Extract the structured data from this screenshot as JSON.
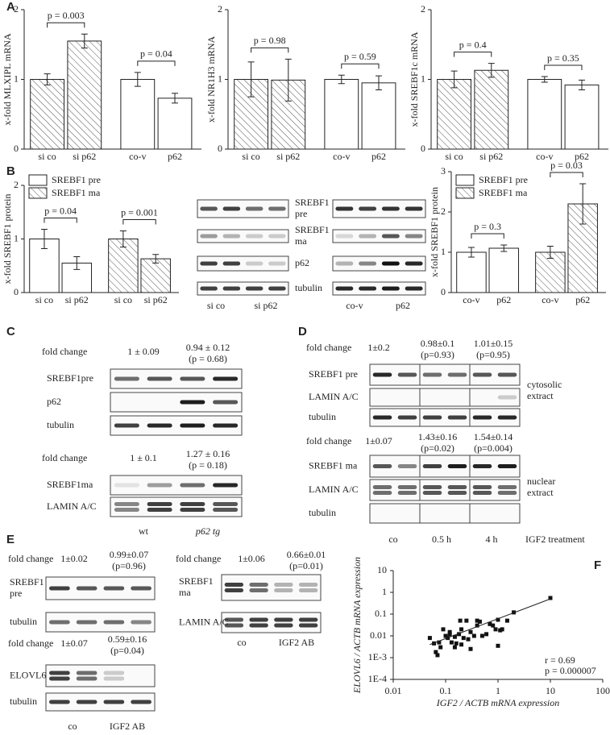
{
  "panel_labels": [
    "A",
    "B",
    "C",
    "D",
    "E",
    "F"
  ],
  "chart_data": [
    {
      "type": "bar",
      "ylabel": "x-fold MLXIPL mRNA",
      "categories": [
        "si co",
        "si p62",
        "co-v",
        "p62"
      ],
      "values": [
        1,
        1.55,
        1,
        0.73
      ],
      "errors": [
        0.08,
        0.1,
        0.1,
        0.07
      ],
      "patterns": [
        "hatched",
        "hatched",
        "plain",
        "plain"
      ],
      "ylim": [
        0,
        2
      ],
      "yticks": [
        0,
        1,
        2
      ],
      "p_values": [
        "p = 0.003",
        "p = 0.04"
      ]
    },
    {
      "type": "bar",
      "ylabel": "x-fold NR1H3 mRNA",
      "categories": [
        "si co",
        "si p62",
        "co-v",
        "p62"
      ],
      "values": [
        1,
        0.99,
        1,
        0.95
      ],
      "errors": [
        0.25,
        0.3,
        0.06,
        0.1
      ],
      "patterns": [
        "hatched",
        "hatched",
        "plain",
        "plain"
      ],
      "ylim": [
        0,
        2
      ],
      "yticks": [
        0,
        1,
        2
      ],
      "p_values": [
        "p = 0.98",
        "p = 0.59"
      ]
    },
    {
      "type": "bar",
      "ylabel": "x-fold SREBF1c mRNA",
      "categories": [
        "si co",
        "si p62",
        "co-v",
        "p62"
      ],
      "values": [
        1,
        1.13,
        1,
        0.92
      ],
      "errors": [
        0.12,
        0.1,
        0.04,
        0.07
      ],
      "patterns": [
        "hatched",
        "hatched",
        "plain",
        "plain"
      ],
      "ylim": [
        0,
        2
      ],
      "yticks": [
        0,
        1,
        2
      ],
      "p_values": [
        "p = 0.4",
        "p = 0.35"
      ]
    },
    {
      "type": "bar",
      "ylabel": "x-fold SREBF1 protein",
      "categories": [
        "si co",
        "si p62",
        "si co",
        "si p62"
      ],
      "series": [
        {
          "name": "SREBF1 pre",
          "pattern": "plain",
          "values": [
            1,
            0.55,
            null,
            null
          ],
          "errors": [
            0.18,
            0.12,
            null,
            null
          ]
        },
        {
          "name": "SREBF1 ma",
          "pattern": "hatched",
          "values": [
            null,
            null,
            1,
            0.63
          ],
          "errors": [
            null,
            null,
            0.15,
            0.08
          ]
        }
      ],
      "ylim": [
        0,
        2
      ],
      "yticks": [
        0,
        1,
        2
      ],
      "p_values": [
        "p = 0.04",
        "p = 0.001"
      ],
      "legend": "upper-left"
    },
    {
      "type": "bar",
      "ylabel": "x-fold SREBF1 protein",
      "categories": [
        "co-v",
        "p62",
        "co-v",
        "p62"
      ],
      "series": [
        {
          "name": "SREBF1 pre",
          "pattern": "plain",
          "values": [
            1,
            1.1,
            null,
            null
          ],
          "errors": [
            0.12,
            0.08,
            null,
            null
          ]
        },
        {
          "name": "SREBF1 ma",
          "pattern": "hatched",
          "values": [
            null,
            null,
            1,
            2.2
          ],
          "errors": [
            null,
            null,
            0.15,
            0.5
          ]
        }
      ],
      "ylim": [
        0,
        3
      ],
      "yticks": [
        0,
        1,
        2,
        3
      ],
      "p_values": [
        "p = 0.3",
        "p = 0.03"
      ],
      "legend": "upper-left"
    },
    {
      "type": "scatter",
      "xlabel": "IGF2 / ACTB mRNA expression",
      "ylabel": "ELOVL6 / ACTB mRNA expression",
      "x": [
        0.05,
        0.06,
        0.065,
        0.07,
        0.075,
        0.08,
        0.09,
        0.1,
        0.11,
        0.12,
        0.13,
        0.15,
        0.15,
        0.16,
        0.18,
        0.19,
        0.2,
        0.2,
        0.22,
        0.25,
        0.27,
        0.3,
        0.3,
        0.35,
        0.4,
        0.45,
        0.5,
        0.6,
        0.7,
        0.8,
        0.9,
        1.0,
        1.0,
        1.1,
        1.2,
        1.5,
        2.0,
        10,
        0.4,
        0.12
      ],
      "y": [
        0.008,
        0.0045,
        0.0018,
        0.0013,
        0.005,
        0.003,
        0.02,
        0.01,
        0.008,
        0.012,
        0.005,
        0.003,
        0.009,
        0.0045,
        0.012,
        0.05,
        0.004,
        0.02,
        0.008,
        0.05,
        0.007,
        0.0025,
        0.015,
        0.01,
        0.05,
        0.045,
        0.01,
        0.012,
        0.035,
        0.03,
        0.02,
        0.055,
        0.0035,
        0.018,
        0.02,
        0.05,
        0.12,
        0.55,
        0.03,
        0.015
      ],
      "log_x": true,
      "log_y": true,
      "xlim": [
        0.01,
        100
      ],
      "ylim": [
        0.0001,
        10
      ],
      "xticks": [
        0.01,
        0.1,
        1,
        10,
        100
      ],
      "yticks": [
        {
          "value": 0.0001,
          "label": "1E-4"
        },
        {
          "value": 0.001,
          "label": "1E-3"
        },
        0.01,
        0.1,
        1,
        10
      ],
      "trendline": {
        "x": [
          0.05,
          10
        ],
        "y": [
          0.004,
          0.5
        ]
      },
      "annotations": [
        "r = 0.69",
        "p =  0.000007"
      ]
    }
  ],
  "blots": {
    "B": {
      "rows": [
        [
          "SREBF1",
          "pre"
        ],
        [
          "SREBF1",
          "ma"
        ],
        [
          "p62"
        ],
        [
          "tubulin"
        ]
      ],
      "lanes": [
        "si co",
        "si p62",
        "co-v",
        "p62"
      ]
    },
    "C": {
      "groups": [
        {
          "fold_label": "fold change",
          "fold_values": [
            [
              "1 ± 0.09"
            ],
            [
              "0.94 ± 0.12",
              "(p = 0.68)"
            ]
          ],
          "rows": [
            [
              "SREBF1pre"
            ],
            [
              "p62"
            ],
            [
              "tubulin"
            ]
          ]
        },
        {
          "fold_label": "fold change",
          "fold_values": [
            [
              "1 ± 0.1"
            ],
            [
              "1.27 ± 0.16",
              "(p = 0.18)"
            ]
          ],
          "rows": [
            [
              "SREBF1ma"
            ],
            [
              "LAMIN A/C"
            ]
          ],
          "lanes": [
            "wt",
            "p62 tg"
          ]
        }
      ]
    },
    "D": {
      "groups": [
        {
          "fold_label": "fold change",
          "fold_values": [
            [
              "1±0.2"
            ],
            [
              "0.98±0.1",
              "(p=0.93)"
            ],
            [
              "1.01±0.15",
              "(p=0.95)"
            ]
          ],
          "rows": [
            [
              "SREBF1 pre"
            ],
            [
              "LAMIN A/C"
            ],
            [
              "tubulin"
            ]
          ],
          "side": [
            "cytosolic",
            "extract"
          ]
        },
        {
          "fold_label": "fold change",
          "fold_values": [
            [
              "1±0.07"
            ],
            [
              "1.43±0.16",
              "(p=0.02)"
            ],
            [
              "1.54±0.14",
              "(p=0.004)"
            ]
          ],
          "rows": [
            [
              "SREBF1 ma"
            ],
            [
              "LAMIN A/C"
            ],
            [
              "tubulin"
            ]
          ],
          "side": [
            "nuclear",
            "extract"
          ],
          "lanes": [
            "co",
            "0.5 h",
            "4 h"
          ],
          "treatment": "IGF2 treatment"
        }
      ]
    },
    "E": {
      "groups": [
        {
          "fold_label": "fold change",
          "fold_values": [
            [
              "1±0.02"
            ],
            [
              "0.99±0.07",
              "(p=0.96)"
            ]
          ],
          "rows": [
            [
              "SREBF1",
              "pre"
            ],
            [
              "tubulin"
            ]
          ]
        },
        {
          "fold_label": "fold change",
          "fold_values": [
            [
              "1±0.07"
            ],
            [
              "0.59±0.16",
              "(p=0.04)"
            ]
          ],
          "rows": [
            [
              "ELOVL6"
            ],
            [
              "tubulin"
            ]
          ],
          "lanes": [
            "co",
            "IGF2 AB"
          ]
        },
        {
          "fold_label": "fold change",
          "fold_values": [
            [
              "1±0.06"
            ],
            [
              "0.66±0.01",
              "(p=0.01)"
            ]
          ],
          "rows": [
            [
              "SREBF1",
              "ma"
            ],
            [
              "LAMIN A/C"
            ]
          ],
          "lanes": [
            "co",
            "IGF2 AB"
          ]
        }
      ]
    }
  }
}
